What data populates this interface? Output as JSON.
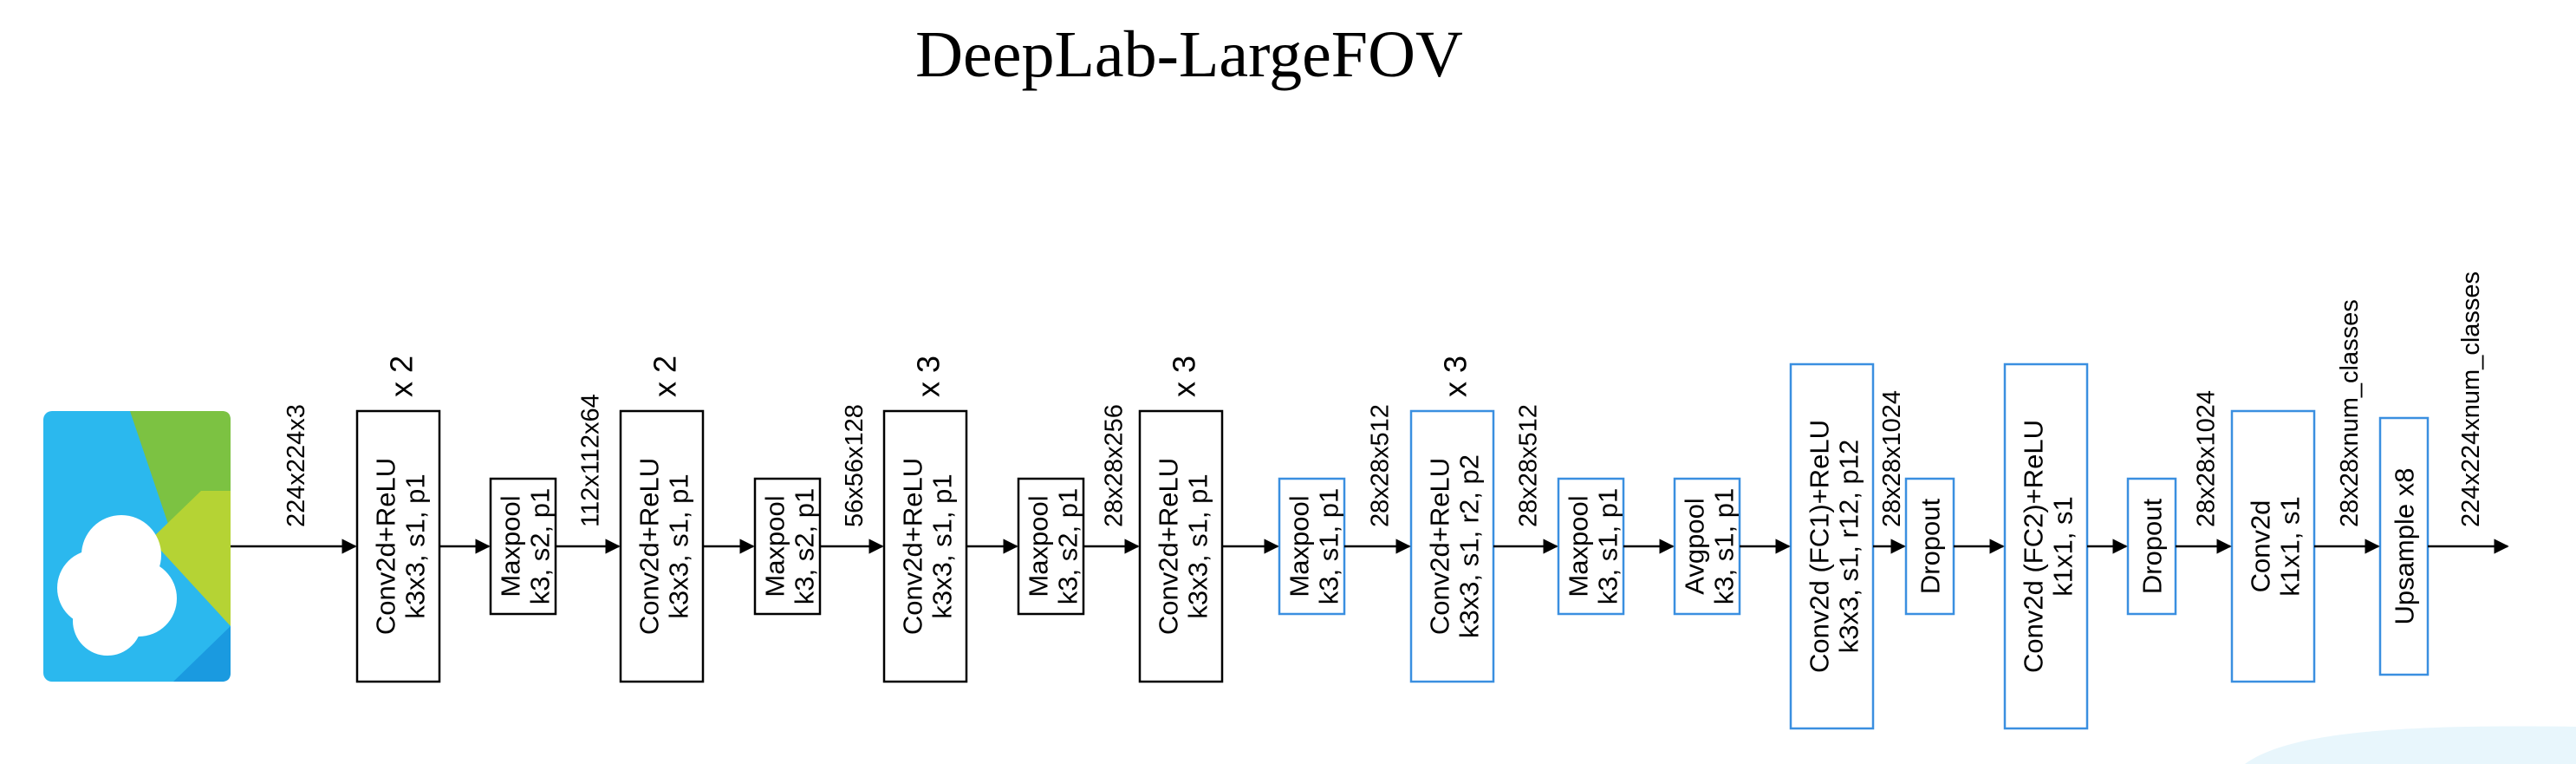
{
  "title": "DeepLab-LargeFOV",
  "colors": {
    "black_block": "#000000",
    "blue_block": "#3a8fe0",
    "arrow": "#000000",
    "logo_light": "#2bb8ee",
    "logo_dark": "#1a9ae0",
    "logo_green": "#7cc242",
    "logo_lime": "#b5d334"
  },
  "input_icon": "cloud-image-icon",
  "layers": [
    {
      "line1": "Conv2d+ReLU",
      "line2": "k3x3, s1, p1",
      "repeat": "x 2",
      "style": "black"
    },
    {
      "line1": "Maxpool",
      "line2": "k3, s2, p1",
      "repeat": "",
      "style": "black"
    },
    {
      "line1": "Conv2d+ReLU",
      "line2": "k3x3, s1, p1",
      "repeat": "x 2",
      "style": "black"
    },
    {
      "line1": "Maxpool",
      "line2": "k3, s2, p1",
      "repeat": "",
      "style": "black"
    },
    {
      "line1": "Conv2d+ReLU",
      "line2": "k3x3, s1, p1",
      "repeat": "x 3",
      "style": "black"
    },
    {
      "line1": "Maxpool",
      "line2": "k3, s2, p1",
      "repeat": "",
      "style": "black"
    },
    {
      "line1": "Conv2d+ReLU",
      "line2": "k3x3, s1, p1",
      "repeat": "x 3",
      "style": "black"
    },
    {
      "line1": "Maxpool",
      "line2": "k3, s1, p1",
      "repeat": "",
      "style": "blue"
    },
    {
      "line1": "Conv2d+ReLU",
      "line2": "k3x3, s1, r2, p2",
      "repeat": "x 3",
      "style": "blue"
    },
    {
      "line1": "Maxpool",
      "line2": "k3, s1, p1",
      "repeat": "",
      "style": "blue"
    },
    {
      "line1": "Avgpool",
      "line2": "k3, s1, p1",
      "repeat": "",
      "style": "blue"
    },
    {
      "line1": "Conv2d (FC1)+ReLU",
      "line2": "k3x3, s1, r12, p12",
      "repeat": "",
      "style": "blue"
    },
    {
      "line1": "Dropout",
      "line2": "",
      "repeat": "",
      "style": "blue"
    },
    {
      "line1": "Conv2d (FC2)+ReLU",
      "line2": "k1x1, s1",
      "repeat": "",
      "style": "blue"
    },
    {
      "line1": "Dropout",
      "line2": "",
      "repeat": "",
      "style": "blue"
    },
    {
      "line1": "Conv2d",
      "line2": "k1x1, s1",
      "repeat": "",
      "style": "blue"
    },
    {
      "line1": "Upsample x8",
      "line2": "",
      "repeat": "",
      "style": "blue"
    }
  ],
  "shapes": [
    "224x224x3",
    "112x112x64",
    "56x56x128",
    "28x28x256",
    "28x28x512",
    "28x28x512",
    "28x28x1024",
    "28x28x1024",
    "28x28xnum_classes",
    "224x224xnum_classes"
  ]
}
